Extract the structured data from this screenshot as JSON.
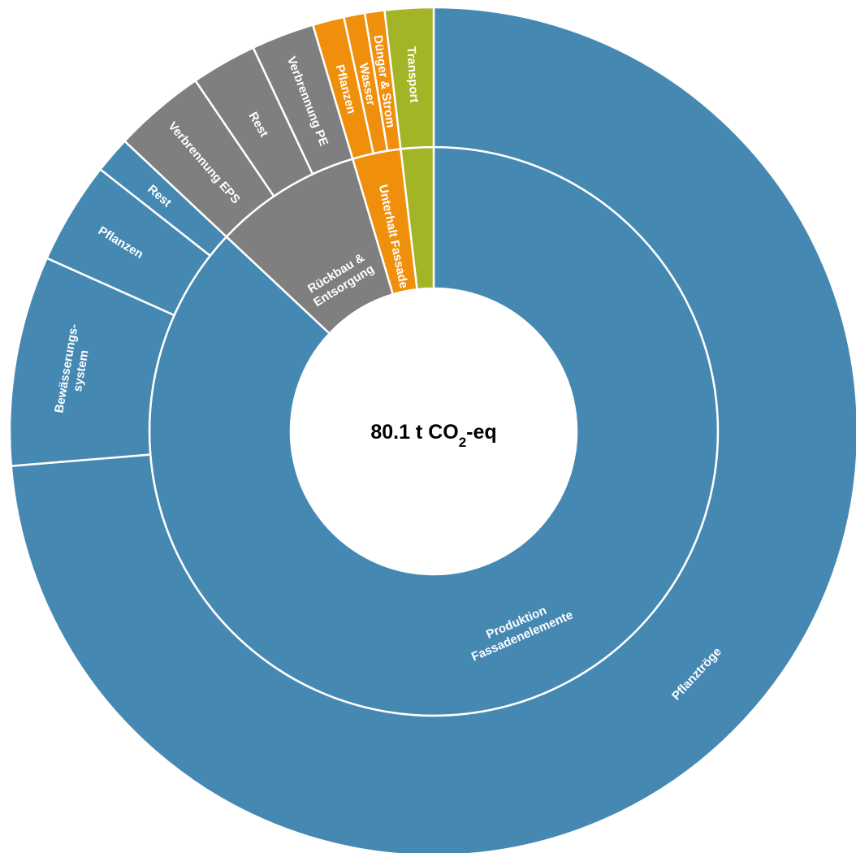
{
  "center_label": {
    "value": "80.1 t CO",
    "subscript": "2",
    "suffix": "-eq"
  },
  "colors": {
    "production": "#4589b3",
    "end_of_life": "#7f7f7f",
    "maintenance": "#f08f0c",
    "transport": "#a3b527"
  },
  "chart_data": {
    "type": "sunburst",
    "total": "80.1 t CO2-eq",
    "inner_ring": [
      {
        "label": "Produktion Fassadenelemente",
        "lines": [
          "Produktion",
          "Fassadenelemente"
        ],
        "value": 87.0,
        "color_key": "production"
      },
      {
        "label": "Rückbau & Entsorgung",
        "lines": [
          "Rückbau &",
          "Entsorgung"
        ],
        "value": 8.4,
        "color_key": "end_of_life"
      },
      {
        "label": "Unterhalt Fassade",
        "lines": [
          "Unterhalt Fassade"
        ],
        "value": 2.75,
        "color_key": "maintenance"
      },
      {
        "label": "Transport",
        "lines": [],
        "value": 1.85,
        "color_key": "transport"
      }
    ],
    "outer_ring": [
      {
        "label": "Pflanztröge",
        "lines": [
          "Pflanztröge"
        ],
        "value": 73.7,
        "color_key": "production",
        "parent": "Produktion Fassadenelemente"
      },
      {
        "label": "Bewässerungssystem",
        "lines": [
          "Bewässerungs-",
          "system"
        ],
        "value": 8.0,
        "color_key": "production",
        "parent": "Produktion Fassadenelemente"
      },
      {
        "label": "Pflanzen",
        "lines": [
          "Pflanzen"
        ],
        "value": 3.9,
        "color_key": "production",
        "parent": "Produktion Fassadenelemente"
      },
      {
        "label": "Rest",
        "lines": [
          "Rest"
        ],
        "value": 1.4,
        "color_key": "production",
        "parent": "Produktion Fassadenelemente"
      },
      {
        "label": "Verbrennung EPS",
        "lines": [
          "Verbrennung EPS"
        ],
        "value": 3.5,
        "color_key": "end_of_life",
        "parent": "Rückbau & Entsorgung"
      },
      {
        "label": "Rest",
        "lines": [
          "Rest"
        ],
        "value": 2.5,
        "color_key": "end_of_life",
        "parent": "Rückbau & Entsorgung"
      },
      {
        "label": "Verbrennung PE",
        "lines": [
          "Verbrennung PE"
        ],
        "value": 2.4,
        "color_key": "end_of_life",
        "parent": "Rückbau & Entsorgung"
      },
      {
        "label": "Pflanzen",
        "lines": [
          "Pflanzen"
        ],
        "value": 1.2,
        "color_key": "maintenance",
        "parent": "Unterhalt Fassade"
      },
      {
        "label": "Wasser",
        "lines": [
          "Wasser"
        ],
        "value": 0.8,
        "color_key": "maintenance",
        "parent": "Unterhalt Fassade"
      },
      {
        "label": "Dünger & Strom",
        "lines": [
          "Dünger & Strom"
        ],
        "value": 0.75,
        "color_key": "maintenance",
        "parent": "Unterhalt Fassade"
      },
      {
        "label": "Transport",
        "lines": [
          "Transport"
        ],
        "value": 1.85,
        "color_key": "transport",
        "parent": "Transport"
      }
    ]
  }
}
